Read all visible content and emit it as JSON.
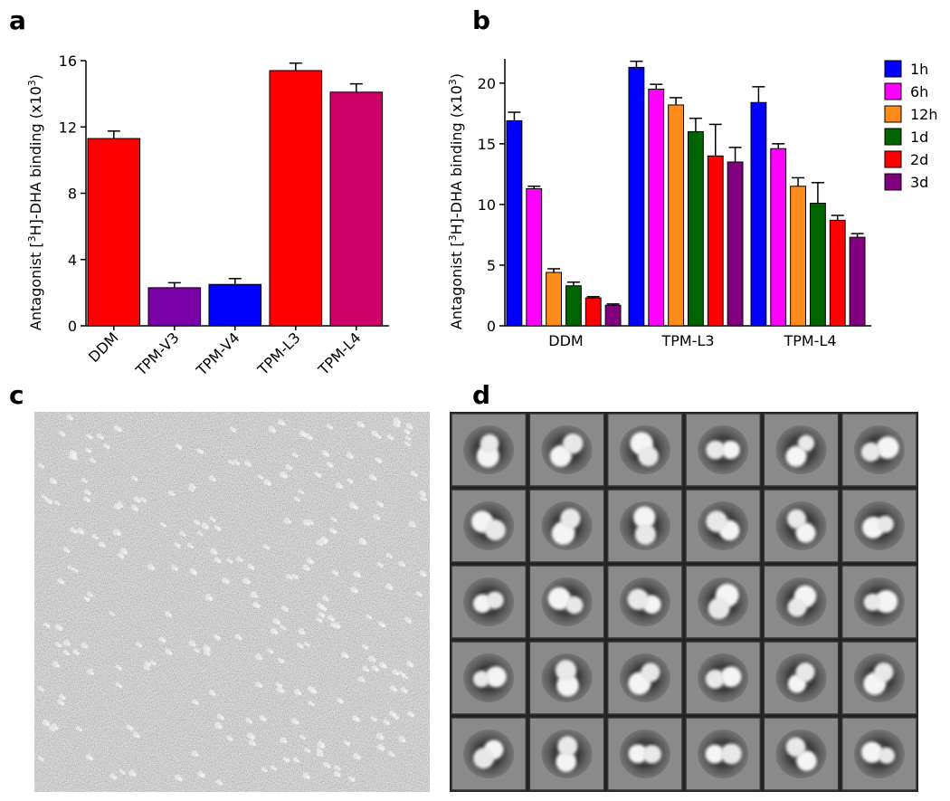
{
  "chart_data": [
    {
      "type": "bar",
      "panel_label": "a",
      "ylabel": [
        {
          "text": "Antagonist ["
        },
        {
          "text": "3",
          "sup": true
        },
        {
          "text": "H]-DHA binding (x10"
        },
        {
          "text": "3",
          "sup": true
        },
        {
          "text": ")"
        }
      ],
      "categories": [
        "DDM",
        "TPM-V3",
        "TPM-V4",
        "TPM-L3",
        "TPM-L4"
      ],
      "values": [
        11.3,
        2.3,
        2.5,
        15.4,
        14.1
      ],
      "errors": [
        0.45,
        0.3,
        0.35,
        0.45,
        0.5
      ],
      "colors": [
        "#ff0000",
        "#7a00a8",
        "#0000ff",
        "#ff0000",
        "#cc0066"
      ],
      "ylim": [
        0,
        16
      ],
      "yticks": [
        0,
        4,
        8,
        12,
        16
      ]
    },
    {
      "type": "bar",
      "panel_label": "b",
      "ylabel": [
        {
          "text": "Antagonist ["
        },
        {
          "text": "3",
          "sup": true
        },
        {
          "text": "H]-DHA binding (x10"
        },
        {
          "text": "3",
          "sup": true
        },
        {
          "text": ")"
        }
      ],
      "categories": [
        "DDM",
        "TPM-L3",
        "TPM-L4"
      ],
      "series": [
        {
          "name": "1h",
          "color": "#0000ff",
          "values": [
            16.9,
            21.3,
            18.4
          ],
          "errors": [
            0.7,
            0.5,
            1.3
          ]
        },
        {
          "name": "6h",
          "color": "#ff00ff",
          "values": [
            11.3,
            19.5,
            14.6
          ],
          "errors": [
            0.2,
            0.4,
            0.4
          ]
        },
        {
          "name": "12h",
          "color": "#ff8c1a",
          "values": [
            4.4,
            18.2,
            11.5
          ],
          "errors": [
            0.3,
            0.6,
            0.7
          ]
        },
        {
          "name": "1d",
          "color": "#006400",
          "values": [
            3.3,
            16.0,
            10.1
          ],
          "errors": [
            0.3,
            1.1,
            1.7
          ]
        },
        {
          "name": "2d",
          "color": "#ff0000",
          "values": [
            2.3,
            14.0,
            8.7
          ],
          "errors": [
            0.1,
            2.6,
            0.4
          ]
        },
        {
          "name": "3d",
          "color": "#800080",
          "values": [
            1.7,
            13.5,
            7.3
          ],
          "errors": [
            0.1,
            1.2,
            0.3
          ]
        }
      ],
      "ylim": [
        0,
        22
      ],
      "yticks": [
        0,
        5,
        10,
        15,
        20
      ],
      "legend": "right"
    }
  ],
  "images": [
    {
      "panel_label": "c"
    },
    {
      "panel_label": "d"
    }
  ]
}
